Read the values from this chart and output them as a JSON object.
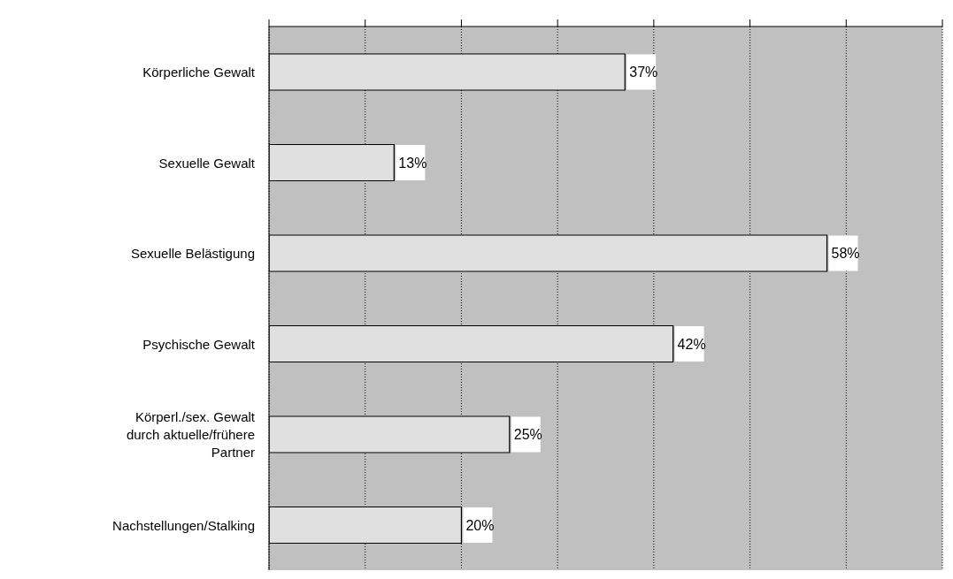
{
  "chart_data": {
    "type": "bar",
    "orientation": "horizontal",
    "categories": [
      "Körperliche Gewalt",
      "Sexuelle Gewalt",
      "Sexuelle Belästigung",
      "Psychische Gewalt",
      "Körperl./sex. Gewalt durch aktuelle/frühere Partner",
      "Nachstellungen/Stalking"
    ],
    "values": [
      37,
      13,
      58,
      42,
      25,
      20
    ],
    "value_labels": [
      "37%",
      "13%",
      "58%",
      "42%",
      "25%",
      "20%"
    ],
    "color": "#e0e0e0",
    "xlim": [
      0,
      70
    ],
    "xticks": [
      {
        "value": 0,
        "label": null
      },
      {
        "value": 10,
        "label": null
      },
      {
        "value": 20,
        "label": null
      },
      {
        "value": 30,
        "label": null
      },
      {
        "value": 40,
        "label": null
      },
      {
        "value": 50,
        "label": null
      },
      {
        "value": 60,
        "label": null
      },
      {
        "value": 70,
        "label": null
      }
    ],
    "grid": "x",
    "tick_labels": "y"
  }
}
